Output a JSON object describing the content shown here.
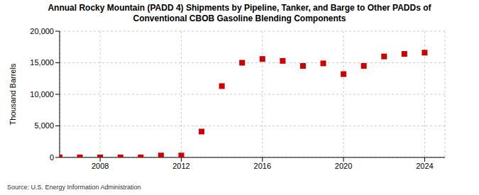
{
  "chart_data": {
    "type": "scatter",
    "title": "Annual Rocky Mountain (PADD 4) Shipments by Pipeline, Tanker, and Barge to Other PADDs of Conventional CBOB Gasoline Blending Components",
    "y_label": "Thousand Barrels",
    "source": "Source: U.S. Energy Information Administration",
    "x": [
      2006,
      2007,
      2008,
      2009,
      2010,
      2011,
      2012,
      2013,
      2014,
      2015,
      2016,
      2017,
      2018,
      2019,
      2020,
      2021,
      2022,
      2023,
      2024
    ],
    "values": [
      0,
      0,
      0,
      0,
      0,
      300,
      300,
      4100,
      11300,
      15000,
      15600,
      15300,
      14500,
      14900,
      13200,
      14500,
      16000,
      16400,
      16600
    ],
    "color": "#cc0000",
    "marker": "square",
    "xlim": [
      2006,
      2025
    ],
    "xticks": [
      2008,
      2012,
      2016,
      2020,
      2024
    ],
    "ylim": [
      0,
      20000
    ],
    "yticks": [
      0,
      {
        "value": 5000,
        "label": "5,000"
      },
      {
        "value": 10000,
        "label": "10,000"
      },
      {
        "value": 15000,
        "label": "15,000"
      },
      {
        "value": 20000,
        "label": "20,000"
      }
    ],
    "grid": true
  }
}
